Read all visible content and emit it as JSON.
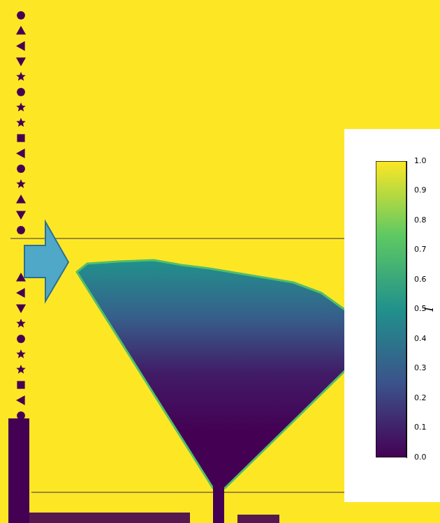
{
  "chart_data": {
    "type": "heatmap",
    "background_intensity": 1.0,
    "deposit_intensity": [
      0.0,
      0.0,
      0.08,
      0.3,
      0.5
    ],
    "colorbar": {
      "label": "I",
      "lim": [
        0,
        1
      ],
      "ticks": [
        {
          "value": 0,
          "label": "0.0"
        },
        0.1,
        0.2,
        0.3,
        0.4,
        0.5,
        0.6,
        0.7,
        0.8,
        0.9,
        {
          "value": 1,
          "label": "1.0"
        }
      ]
    }
  }
}
